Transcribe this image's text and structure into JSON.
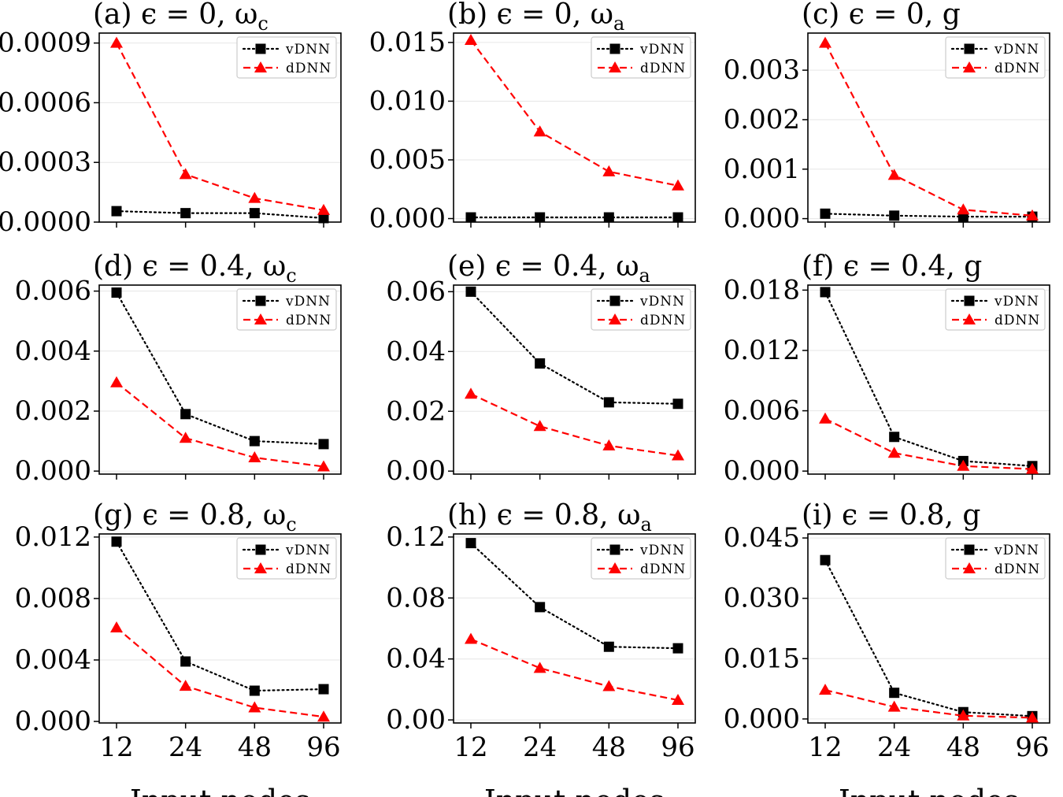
{
  "colors": {
    "vDNN": "#000000",
    "dDNN": "#ff0000",
    "grid": "#e6e6e6",
    "background": "#ffffff"
  },
  "xlabel": "Input nodes",
  "chart_data": [
    {
      "type": "line",
      "title": "(a) ϵ = 0, ω_c",
      "title_parts": [
        "(a) ϵ = 0, ω",
        "c"
      ],
      "categories": [
        "12",
        "24",
        "48",
        "96"
      ],
      "ylim": [
        0,
        0.00095
      ],
      "yticks": [
        0,
        0.0003,
        0.0006,
        0.0009
      ],
      "ytick_labels": [
        "0.0000",
        "0.0003",
        "0.0006",
        "0.0009"
      ],
      "series": [
        {
          "name": "vDNN",
          "values": [
            5.5e-05,
            4.5e-05,
            4.5e-05,
            2e-05
          ]
        },
        {
          "name": "dDNN",
          "values": [
            0.0009,
            0.00024,
            0.00012,
            6e-05
          ]
        }
      ],
      "xlabel": "",
      "legend": "top-right",
      "grid": "horizontal"
    },
    {
      "type": "line",
      "title": "(b) ϵ = 0, ω_a",
      "title_parts": [
        "(b) ϵ = 0, ω",
        "a"
      ],
      "categories": [
        "12",
        "24",
        "48",
        "96"
      ],
      "ylim": [
        -0.0003,
        0.0158
      ],
      "yticks": [
        0,
        0.005,
        0.01,
        0.015
      ],
      "ytick_labels": [
        "0.000",
        "0.005",
        "0.010",
        "0.015"
      ],
      "series": [
        {
          "name": "vDNN",
          "values": [
            0.0001,
            0.0001,
            0.0001,
            0.0001
          ]
        },
        {
          "name": "dDNN",
          "values": [
            0.0152,
            0.0074,
            0.004,
            0.0028
          ]
        }
      ],
      "xlabel": "",
      "legend": "top-right",
      "grid": "horizontal"
    },
    {
      "type": "line",
      "title": "(c) ϵ = 0, g",
      "title_parts": [
        "(c) ϵ = 0, g",
        ""
      ],
      "categories": [
        "12",
        "24",
        "48",
        "96"
      ],
      "ylim": [
        -7e-05,
        0.00375
      ],
      "yticks": [
        0,
        0.001,
        0.002,
        0.003
      ],
      "ytick_labels": [
        "0.000",
        "0.001",
        "0.002",
        "0.003"
      ],
      "series": [
        {
          "name": "vDNN",
          "values": [
            0.0001,
            6e-05,
            4e-05,
            4e-05
          ]
        },
        {
          "name": "dDNN",
          "values": [
            0.00355,
            0.00088,
            0.00018,
            6e-05
          ]
        }
      ],
      "xlabel": "",
      "legend": "top-right",
      "grid": "horizontal"
    },
    {
      "type": "line",
      "title": "(d) ϵ = 0.4, ω_c",
      "title_parts": [
        "(d) ϵ = 0.4, ω",
        "c"
      ],
      "categories": [
        "12",
        "24",
        "48",
        "96"
      ],
      "ylim": [
        -0.0001,
        0.0062
      ],
      "yticks": [
        0,
        0.002,
        0.004,
        0.006
      ],
      "ytick_labels": [
        "0.000",
        "0.002",
        "0.004",
        "0.006"
      ],
      "series": [
        {
          "name": "vDNN",
          "values": [
            0.00595,
            0.0019,
            0.001,
            0.0009
          ]
        },
        {
          "name": "dDNN",
          "values": [
            0.00295,
            0.0011,
            0.00045,
            0.00015
          ]
        }
      ],
      "xlabel": "",
      "legend": "top-right",
      "grid": "horizontal"
    },
    {
      "type": "line",
      "title": "(e) ϵ = 0.4, ω_a",
      "title_parts": [
        "(e) ϵ = 0.4, ω",
        "a"
      ],
      "categories": [
        "12",
        "24",
        "48",
        "96"
      ],
      "ylim": [
        -0.001,
        0.0622
      ],
      "yticks": [
        0,
        0.02,
        0.04,
        0.06
      ],
      "ytick_labels": [
        "0.00",
        "0.02",
        "0.04",
        "0.06"
      ],
      "series": [
        {
          "name": "vDNN",
          "values": [
            0.06,
            0.036,
            0.023,
            0.0225
          ]
        },
        {
          "name": "dDNN",
          "values": [
            0.0258,
            0.015,
            0.0085,
            0.0052
          ]
        }
      ],
      "xlabel": "",
      "legend": "top-right",
      "grid": "horizontal"
    },
    {
      "type": "line",
      "title": "(f) ϵ = 0.4, g",
      "title_parts": [
        "(f) ϵ = 0.4, g",
        ""
      ],
      "categories": [
        "12",
        "24",
        "48",
        "96"
      ],
      "ylim": [
        -0.0003,
        0.0185
      ],
      "yticks": [
        0,
        0.006,
        0.012,
        0.018
      ],
      "ytick_labels": [
        "0.000",
        "0.006",
        "0.012",
        "0.018"
      ],
      "series": [
        {
          "name": "vDNN",
          "values": [
            0.0178,
            0.0034,
            0.001,
            0.0005
          ]
        },
        {
          "name": "dDNN",
          "values": [
            0.0052,
            0.0018,
            0.0005,
            0.0002
          ]
        }
      ],
      "xlabel": "",
      "legend": "top-right",
      "grid": "horizontal"
    },
    {
      "type": "line",
      "title": "(g) ϵ = 0.8, ω_c",
      "title_parts": [
        "(g) ϵ = 0.8, ω",
        "c"
      ],
      "categories": [
        "12",
        "24",
        "48",
        "96"
      ],
      "ylim": [
        -0.0001,
        0.0122
      ],
      "yticks": [
        0,
        0.004,
        0.008,
        0.012
      ],
      "ytick_labels": [
        "0.000",
        "0.004",
        "0.008",
        "0.012"
      ],
      "series": [
        {
          "name": "vDNN",
          "values": [
            0.0117,
            0.0039,
            0.002,
            0.0021
          ]
        },
        {
          "name": "dDNN",
          "values": [
            0.0061,
            0.0023,
            0.0009,
            0.0003
          ]
        }
      ],
      "xlabel": "Input nodes",
      "legend": "top-right",
      "grid": "horizontal"
    },
    {
      "type": "line",
      "title": "(h) ϵ = 0.8, ω_a",
      "title_parts": [
        "(h) ϵ = 0.8, ω",
        "a"
      ],
      "categories": [
        "12",
        "24",
        "48",
        "96"
      ],
      "ylim": [
        -0.002,
        0.122
      ],
      "yticks": [
        0,
        0.04,
        0.08,
        0.12
      ],
      "ytick_labels": [
        "0.00",
        "0.04",
        "0.08",
        "0.12"
      ],
      "series": [
        {
          "name": "vDNN",
          "values": [
            0.116,
            0.074,
            0.048,
            0.047
          ]
        },
        {
          "name": "dDNN",
          "values": [
            0.053,
            0.034,
            0.022,
            0.013
          ]
        }
      ],
      "xlabel": "Input nodes",
      "legend": "top-right",
      "grid": "horizontal"
    },
    {
      "type": "line",
      "title": "(i) ϵ = 0.8, g",
      "title_parts": [
        "(i) ϵ = 0.8, g",
        ""
      ],
      "categories": [
        "12",
        "24",
        "48",
        "96"
      ],
      "ylim": [
        -0.001,
        0.046
      ],
      "yticks": [
        0,
        0.015,
        0.03,
        0.045
      ],
      "ytick_labels": [
        "0.000",
        "0.015",
        "0.030",
        "0.045"
      ],
      "series": [
        {
          "name": "vDNN",
          "values": [
            0.0395,
            0.0065,
            0.0017,
            0.0007
          ]
        },
        {
          "name": "dDNN",
          "values": [
            0.0072,
            0.003,
            0.0008,
            0.0003
          ]
        }
      ],
      "xlabel": "Input nodes",
      "legend": "top-right",
      "grid": "horizontal"
    }
  ]
}
